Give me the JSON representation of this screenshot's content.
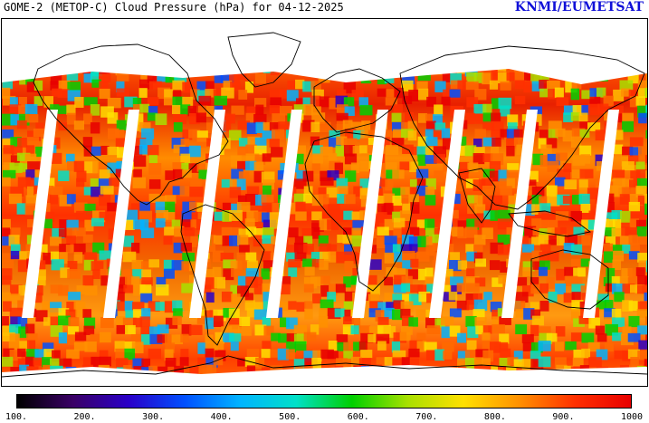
{
  "header": {
    "title": "GOME-2 (METOP-C) Cloud Pressure (hPa) for 04-12-2025",
    "credit": "KNMI/EUMETSAT"
  },
  "map": {
    "projection": "equirectangular",
    "no_data_color": "#ffffff",
    "coastline_color": "#000000"
  },
  "colorbar": {
    "min": 100,
    "max": 1000,
    "tick_labels": [
      "100.",
      "200.",
      "300.",
      "400.",
      "500.",
      "600.",
      "700.",
      "800.",
      "900.",
      "1000"
    ],
    "colors": [
      "#000000",
      "#3a0066",
      "#2a00c8",
      "#0050ff",
      "#00b4ff",
      "#00e0c8",
      "#00d000",
      "#a8e000",
      "#ffe000",
      "#ff9000",
      "#ff3000",
      "#e80000"
    ]
  }
}
